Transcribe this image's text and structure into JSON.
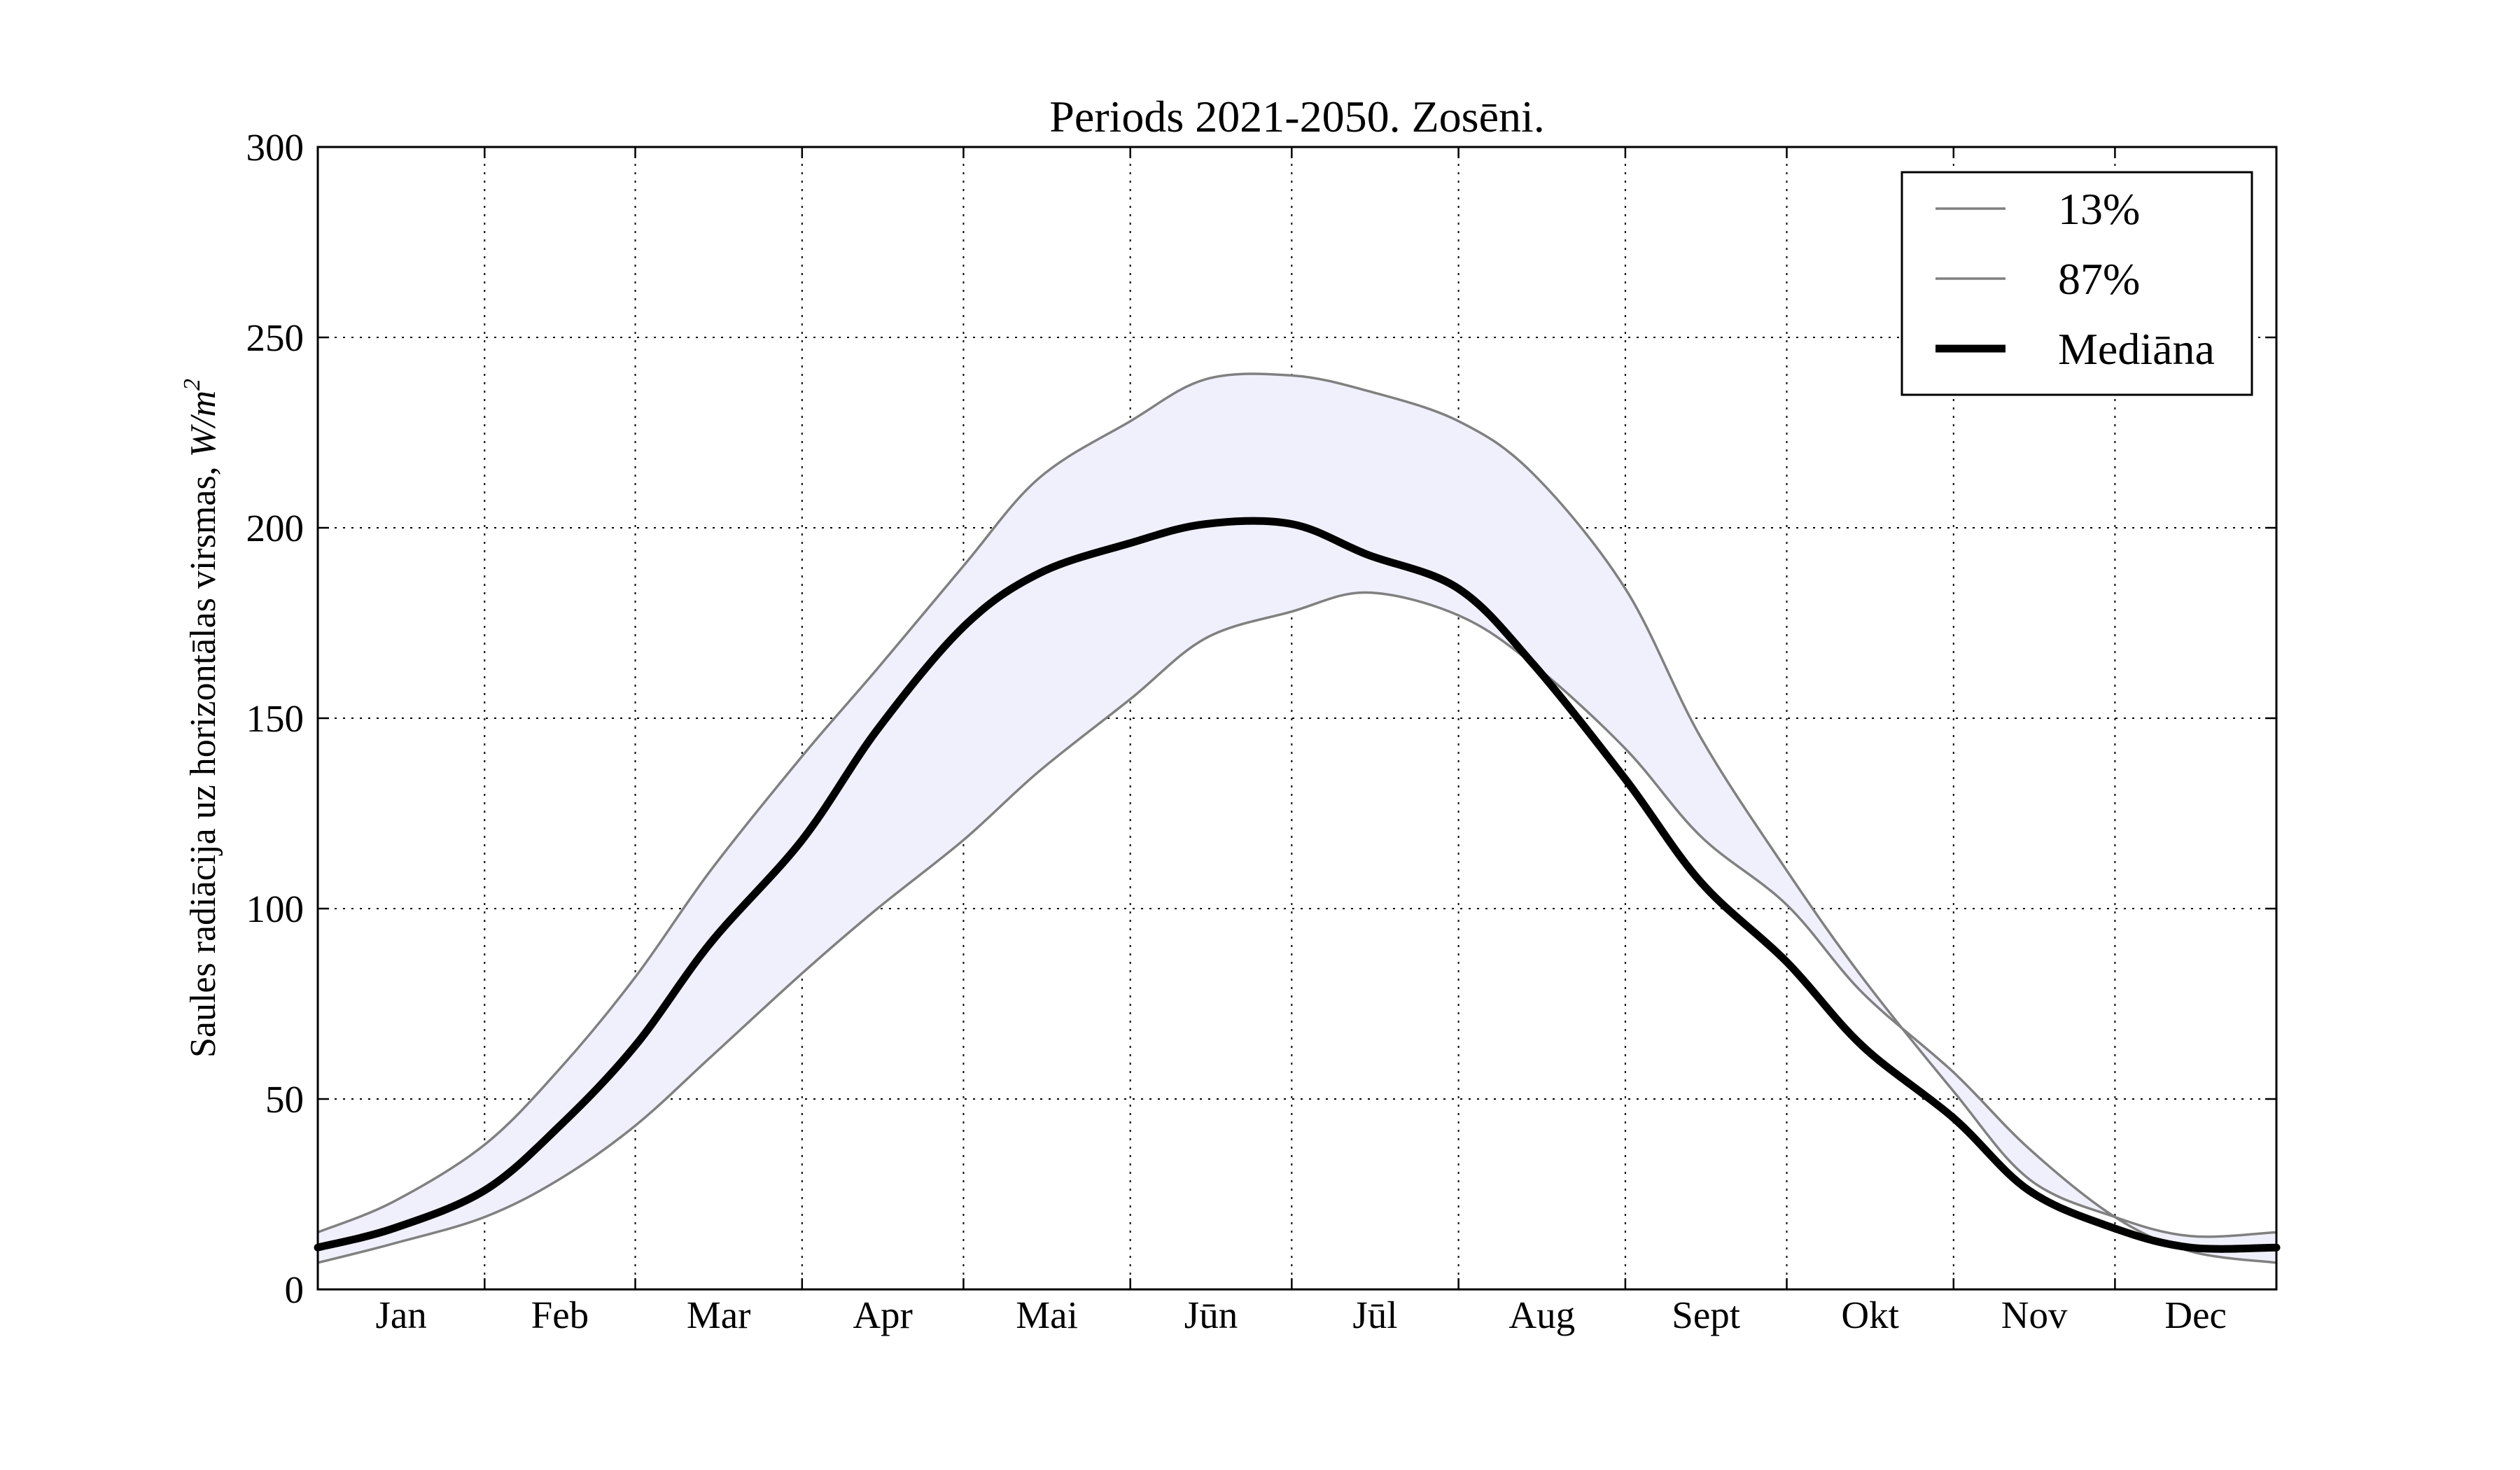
{
  "chart_data": {
    "type": "line",
    "title": "Periods 2021-2050. Zosēni.",
    "ylabel_text": "Saules radiācija uz horizontālas virsmas,",
    "ylabel_units": "W/m",
    "ylabel_units_exp": "2",
    "xlabel": "",
    "ylim": [
      0,
      300
    ],
    "yticks": [
      0,
      50,
      100,
      150,
      200,
      250,
      300
    ],
    "grid": true,
    "legend_position": "top-right",
    "colors": {
      "band_fill": "#f0f0fc",
      "percentile_line": "#808080",
      "median_line": "#000000"
    },
    "months": [
      "Jan",
      "Feb",
      "Mar",
      "Apr",
      "Mai",
      "Jūn",
      "Jūl",
      "Aug",
      "Sept",
      "Okt",
      "Nov",
      "Dec"
    ],
    "x": [
      1,
      15,
      32,
      46,
      60,
      74,
      91,
      105,
      121,
      135,
      152,
      166,
      182,
      196,
      213,
      227,
      244,
      258,
      274,
      288,
      305,
      319,
      335,
      349,
      365
    ],
    "series": [
      {
        "name": "13%",
        "values": [
          7,
          12,
          19,
          29,
          43,
          61,
          83,
          100,
          118,
          136,
          155,
          171,
          178,
          183,
          177,
          164,
          142,
          119,
          101,
          78,
          57,
          37,
          19,
          10,
          7
        ]
      },
      {
        "name": "87%",
        "values": [
          15,
          23,
          38,
          58,
          82,
          110,
          140,
          163,
          190,
          213,
          228,
          239,
          240,
          236,
          228,
          214,
          184,
          145,
          110,
          82,
          52,
          29,
          19,
          14,
          15
        ]
      },
      {
        "name": "Mediāna",
        "values": [
          11,
          16,
          26,
          43,
          64,
          91,
          118,
          147,
          174,
          188,
          196,
          201,
          201,
          193,
          184,
          164,
          134,
          107,
          86,
          64,
          45,
          26,
          16,
          11,
          11
        ]
      }
    ]
  }
}
